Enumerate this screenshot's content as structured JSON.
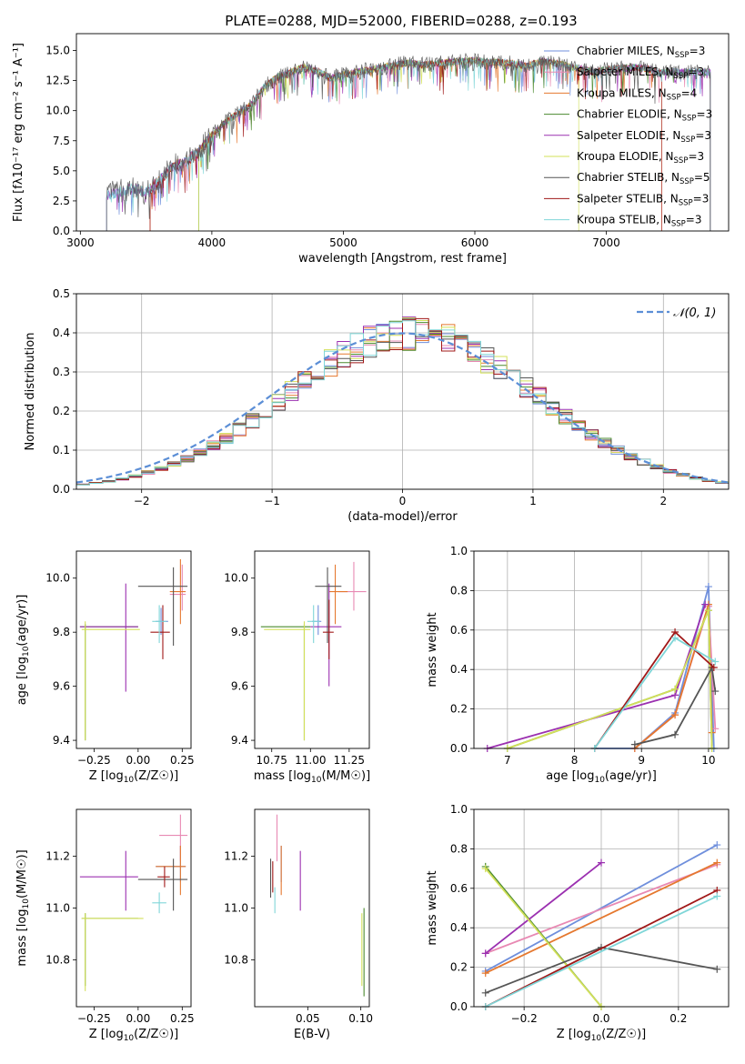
{
  "title": "PLATE=0288, MJD=52000, FIBERID=0288, z=0.193",
  "series": [
    {
      "name": "Chabrier MILES, N",
      "color": "#6f8fdc"
    },
    {
      "name": "Salpeter MILES, N",
      "color": "#e889b3"
    },
    {
      "name": "Kroupa MILES, N",
      "color": "#e5782f"
    },
    {
      "name": "Chabrier ELODIE, N",
      "color": "#4a8a2e"
    },
    {
      "name": "Salpeter ELODIE, N",
      "color": "#9b30b0"
    },
    {
      "name": "Kroupa ELODIE, N",
      "color": "#d3e05a"
    },
    {
      "name": "Chabrier STELIB, N",
      "color": "#555555"
    },
    {
      "name": "Salpeter STELIB, N",
      "color": "#a01818"
    },
    {
      "name": "Kroupa STELIB, N",
      "color": "#7fd6d8"
    }
  ],
  "ssp_sub": "SSP",
  "nssp": [
    "=3",
    "=3",
    "=4",
    "=3",
    "=3",
    "=3",
    "=5",
    "=3",
    "=3"
  ],
  "chart_data": [
    {
      "id": "spectrum",
      "type": "line",
      "xlabel": "wavelength [Angstrom, rest frame]",
      "ylabel": "Flux [fλ10⁻¹⁷ erg cm⁻² s⁻¹ A⁻¹]",
      "xlim": [
        2970,
        7930
      ],
      "ylim": [
        0,
        16.4
      ],
      "xticks": [
        3000,
        4000,
        5000,
        6000,
        7000
      ],
      "yticks": [
        0.0,
        2.5,
        5.0,
        7.5,
        10.0,
        12.5,
        15.0
      ],
      "x": [
        3200,
        3300,
        3400,
        3500,
        3600,
        3700,
        3800,
        3900,
        4000,
        4100,
        4200,
        4300,
        4400,
        4500,
        4600,
        4700,
        4800,
        4900,
        5000,
        5100,
        5200,
        5300,
        5400,
        5500,
        5600,
        5700,
        5800,
        5900,
        6000,
        6100,
        6200,
        6300,
        6400,
        6500,
        6600,
        6700,
        6800,
        6900,
        7000,
        7100,
        7200,
        7300,
        7400
      ],
      "values": [
        3.0,
        3.3,
        3.5,
        3.2,
        4.2,
        5.3,
        5.8,
        6.5,
        8.0,
        9.0,
        9.8,
        10.5,
        12.0,
        12.8,
        13.2,
        13.6,
        13.3,
        12.7,
        13.0,
        13.2,
        13.4,
        13.6,
        13.8,
        14.0,
        13.8,
        13.9,
        14.0,
        14.1,
        14.2,
        14.0,
        14.0,
        13.9,
        13.7,
        14.1,
        14.0,
        13.7,
        13.5,
        13.2,
        13.4,
        13.5,
        13.6,
        13.5,
        13.2
      ],
      "series_start": [
        3200,
        3530,
        3530,
        3900,
        3200,
        3900,
        3200,
        3530,
        3200
      ],
      "series_end": [
        7790,
        7790,
        7420,
        7790,
        7790,
        6790,
        7790,
        7420,
        7790
      ]
    },
    {
      "id": "residuals",
      "type": "line",
      "xlabel": "(data-model)/error",
      "ylabel": "Normed distribution",
      "xlim": [
        -2.5,
        2.5
      ],
      "ylim": [
        0,
        0.5
      ],
      "xticks": [
        -2,
        -1,
        0,
        1,
        2
      ],
      "xticklabels": [
        "−2",
        "−1",
        "0",
        "1",
        "2"
      ],
      "yticks": [
        0.0,
        0.1,
        0.2,
        0.3,
        0.4,
        0.5
      ],
      "legend": "𝒩(0, 1)",
      "grid": true
    },
    {
      "id": "age-vs-Z",
      "type": "scatter",
      "xlabel": "Z [log10(Z/Z☉)]",
      "ylabel": "age  [log10(age/yr)]",
      "xlim": [
        -0.35,
        0.3
      ],
      "ylim": [
        9.37,
        10.1
      ],
      "xticks": [
        -0.25,
        0.0,
        0.25
      ],
      "xticklabels": [
        "−0.25",
        "0.00",
        "0.25"
      ],
      "yticks": [
        9.4,
        9.6,
        9.8,
        10.0
      ],
      "points": [
        {
          "s": 0,
          "x": 0.13,
          "y": 9.84,
          "ex": [
            0.1,
            0.17
          ],
          "ey": [
            9.79,
            9.89
          ]
        },
        {
          "s": 1,
          "x": 0.25,
          "y": 9.94,
          "ex": [
            0.18,
            0.27
          ],
          "ey": [
            9.88,
            10.05
          ]
        },
        {
          "s": 2,
          "x": 0.24,
          "y": 9.95,
          "ex": [
            0.18,
            0.27
          ],
          "ey": [
            9.83,
            10.07
          ]
        },
        {
          "s": 3,
          "x": -0.3,
          "y": 9.82,
          "ex": [
            -0.33,
            0.0
          ],
          "ey": [
            9.4,
            9.83
          ]
        },
        {
          "s": 4,
          "x": -0.07,
          "y": 9.82,
          "ex": [
            -0.33,
            0.0
          ],
          "ey": [
            9.58,
            9.98
          ]
        },
        {
          "s": 5,
          "x": -0.3,
          "y": 9.81,
          "ex": [
            -0.32,
            0.01
          ],
          "ey": [
            9.4,
            9.84
          ]
        },
        {
          "s": 6,
          "x": 0.2,
          "y": 9.97,
          "ex": [
            0.0,
            0.28
          ],
          "ey": [
            9.75,
            10.04
          ]
        },
        {
          "s": 7,
          "x": 0.14,
          "y": 9.8,
          "ex": [
            0.07,
            0.18
          ],
          "ey": [
            9.7,
            9.9
          ]
        },
        {
          "s": 8,
          "x": 0.12,
          "y": 9.84,
          "ex": [
            0.08,
            0.16
          ],
          "ey": [
            9.76,
            9.9
          ]
        }
      ]
    },
    {
      "id": "age-vs-mass",
      "type": "scatter",
      "xlabel": "mass [log10(M/M☉)]",
      "ylabel": "",
      "xlim": [
        10.64,
        11.38
      ],
      "ylim": [
        9.37,
        10.1
      ],
      "xticks": [
        10.75,
        11.0,
        11.25
      ],
      "xticklabels": [
        "10.75",
        "11.00",
        "11.25"
      ],
      "yticks": [
        9.4,
        9.6,
        9.8,
        10.0
      ],
      "points": [
        {
          "s": 0,
          "x": 11.05,
          "y": 9.84,
          "ex": [
            11.01,
            11.07
          ],
          "ey": [
            9.79,
            9.9
          ]
        },
        {
          "s": 1,
          "x": 11.28,
          "y": 9.95,
          "ex": [
            11.18,
            11.36
          ],
          "ey": [
            9.88,
            10.06
          ]
        },
        {
          "s": 2,
          "x": 11.16,
          "y": 9.95,
          "ex": [
            11.12,
            11.24
          ],
          "ey": [
            9.83,
            10.05
          ]
        },
        {
          "s": 3,
          "x": 10.96,
          "y": 9.82,
          "ex": [
            10.68,
            11.0
          ],
          "ey": [
            9.4,
            9.83
          ]
        },
        {
          "s": 4,
          "x": 11.12,
          "y": 9.82,
          "ex": [
            11.0,
            11.2
          ],
          "ey": [
            9.6,
            9.98
          ]
        },
        {
          "s": 5,
          "x": 10.96,
          "y": 9.81,
          "ex": [
            10.7,
            11.0
          ],
          "ey": [
            9.4,
            9.84
          ]
        },
        {
          "s": 6,
          "x": 11.11,
          "y": 9.97,
          "ex": [
            11.03,
            11.2
          ],
          "ey": [
            9.76,
            10.04
          ]
        },
        {
          "s": 7,
          "x": 11.12,
          "y": 9.8,
          "ex": [
            11.08,
            11.15
          ],
          "ey": [
            9.7,
            9.92
          ]
        },
        {
          "s": 8,
          "x": 11.02,
          "y": 9.84,
          "ex": [
            10.98,
            11.06
          ],
          "ey": [
            9.76,
            9.9
          ]
        }
      ]
    },
    {
      "id": "mass-weight-vs-age",
      "type": "line",
      "xlabel": "age  [log10(age/yr)]",
      "ylabel": "mass weight",
      "xlim": [
        6.5,
        10.3
      ],
      "ylim": [
        0,
        1
      ],
      "xticks": [
        7,
        8,
        9,
        10
      ],
      "yticks": [
        0.0,
        0.2,
        0.4,
        0.6,
        0.8,
        1.0
      ],
      "grid": true,
      "lines": [
        {
          "s": 0,
          "x": [
            8.3,
            8.9,
            9.5,
            10.0,
            10.08
          ],
          "y": [
            0.0,
            0.0,
            0.18,
            0.82,
            0.0
          ]
        },
        {
          "s": 1,
          "x": [
            8.9,
            9.5,
            10.0,
            10.1
          ],
          "y": [
            0.0,
            0.17,
            0.72,
            0.1
          ]
        },
        {
          "s": 2,
          "x": [
            8.9,
            9.5,
            10.0,
            10.05
          ],
          "y": [
            0.0,
            0.17,
            0.73,
            0.08
          ]
        },
        {
          "s": 3,
          "x": [
            7.0,
            9.5,
            10.0,
            10.05
          ],
          "y": [
            0.0,
            0.3,
            0.7,
            0.0
          ]
        },
        {
          "s": 4,
          "x": [
            6.7,
            9.5,
            9.95
          ],
          "y": [
            0.0,
            0.27,
            0.73
          ]
        },
        {
          "s": 5,
          "x": [
            7.0,
            9.5,
            10.0,
            10.05
          ],
          "y": [
            0.0,
            0.3,
            0.7,
            0.0
          ]
        },
        {
          "s": 6,
          "x": [
            8.9,
            9.5,
            10.05,
            10.1
          ],
          "y": [
            0.02,
            0.07,
            0.41,
            0.29
          ]
        },
        {
          "s": 7,
          "x": [
            8.3,
            9.5,
            10.08
          ],
          "y": [
            0.0,
            0.59,
            0.41
          ]
        },
        {
          "s": 8,
          "x": [
            8.3,
            9.5,
            10.1
          ],
          "y": [
            0.0,
            0.56,
            0.44
          ]
        }
      ]
    },
    {
      "id": "mass-vs-Z",
      "type": "scatter",
      "xlabel": "Z [log10(Z/Z☉)]",
      "ylabel": "mass [log10(M/M☉)]",
      "xlim": [
        -0.35,
        0.3
      ],
      "ylim": [
        10.62,
        11.38
      ],
      "xticks": [
        -0.25,
        0.0,
        0.25
      ],
      "xticklabels": [
        "−0.25",
        "0.00",
        "0.25"
      ],
      "yticks": [
        10.8,
        11.0,
        11.2
      ],
      "points": [
        {
          "s": 0,
          "x": 0.24,
          "y": 11.16,
          "ex": [
            0.1,
            0.27
          ],
          "ey": [
            11.1,
            11.24
          ]
        },
        {
          "s": 1,
          "x": 0.24,
          "y": 11.28,
          "ex": [
            0.12,
            0.28
          ],
          "ey": [
            11.18,
            11.36
          ]
        },
        {
          "s": 2,
          "x": 0.24,
          "y": 11.16,
          "ex": [
            0.1,
            0.27
          ],
          "ey": [
            11.05,
            11.24
          ]
        },
        {
          "s": 3,
          "x": -0.3,
          "y": 10.96,
          "ex": [
            -0.32,
            0.0
          ],
          "ey": [
            10.7,
            10.98
          ]
        },
        {
          "s": 4,
          "x": -0.07,
          "y": 11.12,
          "ex": [
            -0.33,
            0.0
          ],
          "ey": [
            10.99,
            11.22
          ]
        },
        {
          "s": 5,
          "x": -0.3,
          "y": 10.96,
          "ex": [
            -0.32,
            0.03
          ],
          "ey": [
            10.68,
            10.98
          ]
        },
        {
          "s": 6,
          "x": 0.2,
          "y": 11.11,
          "ex": [
            0.0,
            0.28
          ],
          "ey": [
            10.99,
            11.19
          ]
        },
        {
          "s": 7,
          "x": 0.15,
          "y": 11.12,
          "ex": [
            0.11,
            0.18
          ],
          "ey": [
            11.08,
            11.16
          ]
        },
        {
          "s": 8,
          "x": 0.12,
          "y": 11.02,
          "ex": [
            0.08,
            0.16
          ],
          "ey": [
            10.98,
            11.06
          ]
        }
      ]
    },
    {
      "id": "mass-vs-EBV",
      "type": "scatter",
      "xlabel": "E(B-V)",
      "ylabel": "",
      "xlim": [
        0.0,
        0.108
      ],
      "ylim": [
        10.62,
        11.38
      ],
      "xticks": [
        0.05,
        0.1
      ],
      "xticklabels": [
        "0.05",
        "0.10"
      ],
      "yticks": [
        10.8,
        11.0,
        11.2
      ],
      "points": [
        {
          "s": 0,
          "x": 0.025,
          "y": 11.16,
          "ey": [
            11.1,
            11.24
          ]
        },
        {
          "s": 1,
          "x": 0.021,
          "y": 11.28,
          "ey": [
            11.18,
            11.36
          ]
        },
        {
          "s": 2,
          "x": 0.025,
          "y": 11.15,
          "ey": [
            11.05,
            11.24
          ]
        },
        {
          "s": 3,
          "x": 0.103,
          "y": 10.96,
          "ey": [
            10.66,
            11.0
          ]
        },
        {
          "s": 4,
          "x": 0.043,
          "y": 11.12,
          "ey": [
            10.99,
            11.22
          ]
        },
        {
          "s": 5,
          "x": 0.101,
          "y": 10.96,
          "ey": [
            10.7,
            10.98
          ]
        },
        {
          "s": 6,
          "x": 0.015,
          "y": 11.11,
          "ey": [
            11.04,
            11.19
          ]
        },
        {
          "s": 7,
          "x": 0.017,
          "y": 11.12,
          "ey": [
            11.06,
            11.18
          ]
        },
        {
          "s": 8,
          "x": 0.019,
          "y": 11.03,
          "ey": [
            10.98,
            11.08
          ]
        }
      ]
    },
    {
      "id": "mass-weight-vs-Z",
      "type": "line",
      "xlabel": "Z [log10(Z/Z☉)]",
      "ylabel": "mass weight",
      "xlim": [
        -0.33,
        0.33
      ],
      "ylim": [
        0,
        1
      ],
      "xticks": [
        -0.2,
        0.0,
        0.2
      ],
      "xticklabels": [
        "−0.2",
        "0.0",
        "0.2"
      ],
      "yticks": [
        0.0,
        0.2,
        0.4,
        0.6,
        0.8,
        1.0
      ],
      "grid": true,
      "lines": [
        {
          "s": 0,
          "x": [
            -0.3,
            0.3
          ],
          "y": [
            0.18,
            0.82
          ]
        },
        {
          "s": 1,
          "x": [
            -0.3,
            0.3
          ],
          "y": [
            0.27,
            0.72
          ]
        },
        {
          "s": 2,
          "x": [
            -0.3,
            0.3
          ],
          "y": [
            0.17,
            0.73
          ]
        },
        {
          "s": 3,
          "x": [
            -0.3,
            0.0
          ],
          "y": [
            0.71,
            0.0
          ]
        },
        {
          "s": 4,
          "x": [
            -0.3,
            0.0
          ],
          "y": [
            0.27,
            0.73
          ]
        },
        {
          "s": 5,
          "x": [
            -0.3,
            0.0
          ],
          "y": [
            0.7,
            0.0
          ]
        },
        {
          "s": 6,
          "x": [
            -0.3,
            0.0,
            0.3
          ],
          "y": [
            0.07,
            0.3,
            0.19
          ]
        },
        {
          "s": 7,
          "x": [
            -0.3,
            0.3
          ],
          "y": [
            0.0,
            0.59
          ]
        },
        {
          "s": 8,
          "x": [
            -0.3,
            0.3
          ],
          "y": [
            0.0,
            0.56
          ]
        }
      ]
    }
  ]
}
